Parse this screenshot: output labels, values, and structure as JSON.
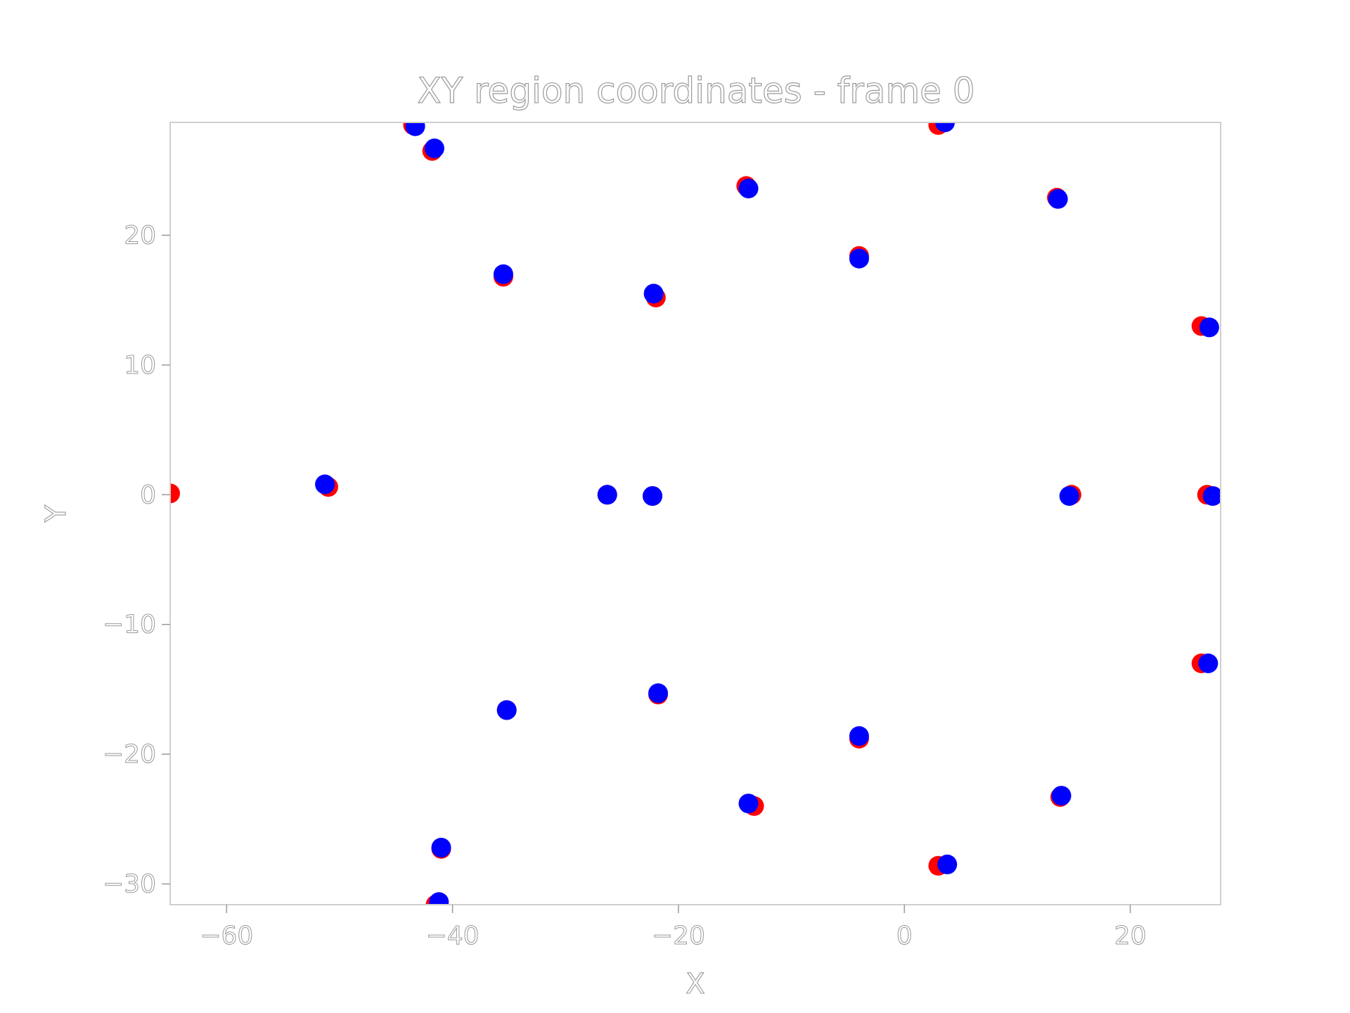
{
  "chart_data": {
    "type": "scatter",
    "title": "XY region coordinates - frame 0",
    "xlabel": "X",
    "ylabel": "Y",
    "xlim": [
      -65,
      28
    ],
    "ylim": [
      -31.6,
      28.7
    ],
    "xticks": [
      -60,
      -40,
      -20,
      0,
      20
    ],
    "yticks": [
      -30,
      -20,
      -10,
      0,
      10,
      20
    ],
    "xtick_labels": [
      "−60",
      "−40",
      "−20",
      "0",
      "20"
    ],
    "ytick_labels": [
      "−30",
      "−20",
      "−10",
      "0",
      "10",
      "20"
    ],
    "grid": false,
    "legend": "none",
    "series": [
      {
        "color": "#ff0000",
        "points": [
          [
            -65.0,
            0.1
          ],
          [
            -51.0,
            0.6
          ],
          [
            -43.5,
            28.5
          ],
          [
            -41.8,
            26.5
          ],
          [
            -35.5,
            16.8
          ],
          [
            -26.3,
            0.0
          ],
          [
            -22.3,
            -0.1
          ],
          [
            -22.0,
            15.2
          ],
          [
            -21.8,
            -15.4
          ],
          [
            -14.0,
            23.8
          ],
          [
            -13.3,
            -24.0
          ],
          [
            -4.0,
            18.4
          ],
          [
            -4.0,
            -18.8
          ],
          [
            3.0,
            28.5
          ],
          [
            3.0,
            -28.6
          ],
          [
            13.5,
            22.9
          ],
          [
            13.8,
            -23.3
          ],
          [
            14.8,
            0.0
          ],
          [
            26.3,
            13.0
          ],
          [
            26.3,
            -13.0
          ],
          [
            26.8,
            0.0
          ],
          [
            -41.5,
            -31.6
          ],
          [
            -41.0,
            -27.3
          ],
          [
            -35.2,
            -16.6
          ]
        ]
      },
      {
        "color": "#0000ff",
        "points": [
          [
            -51.3,
            0.8
          ],
          [
            -43.3,
            28.4
          ],
          [
            -41.6,
            26.7
          ],
          [
            -35.5,
            17.0
          ],
          [
            -26.3,
            0.0
          ],
          [
            -22.3,
            -0.1
          ],
          [
            -22.2,
            15.5
          ],
          [
            -21.8,
            -15.3
          ],
          [
            -13.8,
            23.6
          ],
          [
            -13.8,
            -23.8
          ],
          [
            -4.0,
            18.2
          ],
          [
            -4.0,
            -18.6
          ],
          [
            3.6,
            28.7
          ],
          [
            3.8,
            -28.5
          ],
          [
            13.6,
            22.8
          ],
          [
            13.9,
            -23.2
          ],
          [
            14.6,
            -0.1
          ],
          [
            27.0,
            12.9
          ],
          [
            26.9,
            -13.0
          ],
          [
            27.3,
            -0.1
          ],
          [
            -41.2,
            -31.4
          ],
          [
            -41.0,
            -27.2
          ],
          [
            -35.2,
            -16.6
          ]
        ]
      }
    ]
  }
}
